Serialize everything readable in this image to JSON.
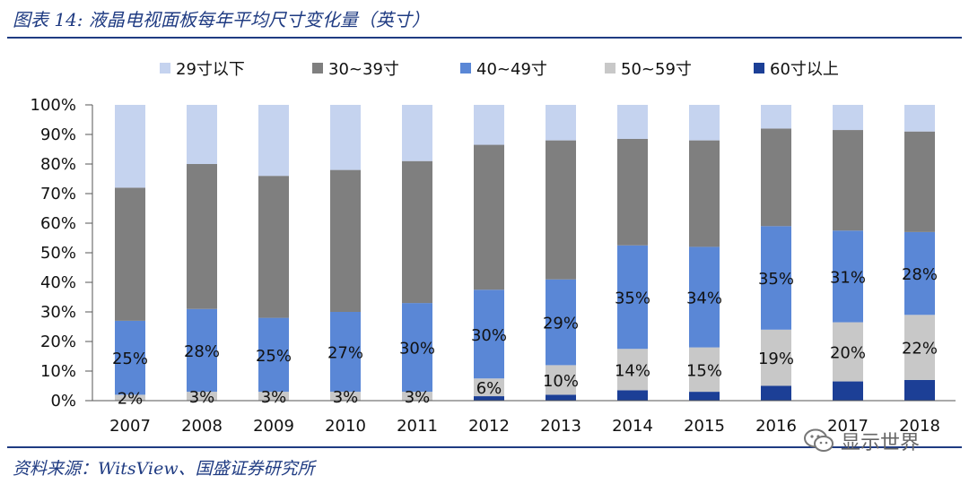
{
  "header": {
    "title": "图表 14: 液晶电视面板每年平均尺寸变化量（英寸）"
  },
  "footer": {
    "source": "资料来源：WitsView、国盛证券研究所",
    "watermark": "显示世界"
  },
  "colors": {
    "29寸以下": "#c5d3ef",
    "30~39寸": "#7f7f7f",
    "40~49寸": "#5a87d6",
    "50~59寸": "#c8c8c8",
    "60寸以上": "#1c3f96"
  },
  "chart_data": {
    "type": "bar",
    "stacked": true,
    "percent": true,
    "title": "",
    "xlabel": "",
    "ylabel": "",
    "ylim": [
      0,
      100
    ],
    "yticks": [
      "0%",
      "10%",
      "20%",
      "30%",
      "40%",
      "50%",
      "60%",
      "70%",
      "80%",
      "90%",
      "100%"
    ],
    "legend_position": "top",
    "categories": [
      "2007",
      "2008",
      "2009",
      "2010",
      "2011",
      "2012",
      "2013",
      "2014",
      "2015",
      "2016",
      "2017",
      "2018"
    ],
    "series": [
      {
        "name": "60寸以上",
        "values": [
          0,
          0,
          0,
          0,
          0,
          1.5,
          2,
          3.5,
          3,
          5,
          6.5,
          7
        ],
        "labels": []
      },
      {
        "name": "50~59寸",
        "values": [
          2,
          3,
          3,
          3,
          3,
          6,
          10,
          14,
          15,
          19,
          20,
          22
        ],
        "labels": [
          "2%",
          "3%",
          "3%",
          "3%",
          "3%",
          "6%",
          "10%",
          "14%",
          "15%",
          "19%",
          "20%",
          "22%"
        ]
      },
      {
        "name": "40~49寸",
        "values": [
          25,
          28,
          25,
          27,
          30,
          30,
          29,
          35,
          34,
          35,
          31,
          28
        ],
        "labels": [
          "25%",
          "28%",
          "25%",
          "27%",
          "30%",
          "30%",
          "29%",
          "35%",
          "34%",
          "35%",
          "31%",
          "28%"
        ]
      },
      {
        "name": "30~39寸",
        "values": [
          45,
          49,
          48,
          48,
          48,
          49,
          47,
          36,
          36,
          33,
          34,
          34
        ],
        "labels": []
      },
      {
        "name": "29寸以下",
        "values": [
          28,
          20,
          24,
          22,
          19,
          13.5,
          12,
          11.5,
          12,
          8,
          8.5,
          9
        ],
        "labels": []
      }
    ],
    "legend_order": [
      "29寸以下",
      "30~39寸",
      "40~49寸",
      "50~59寸",
      "60寸以上"
    ]
  }
}
